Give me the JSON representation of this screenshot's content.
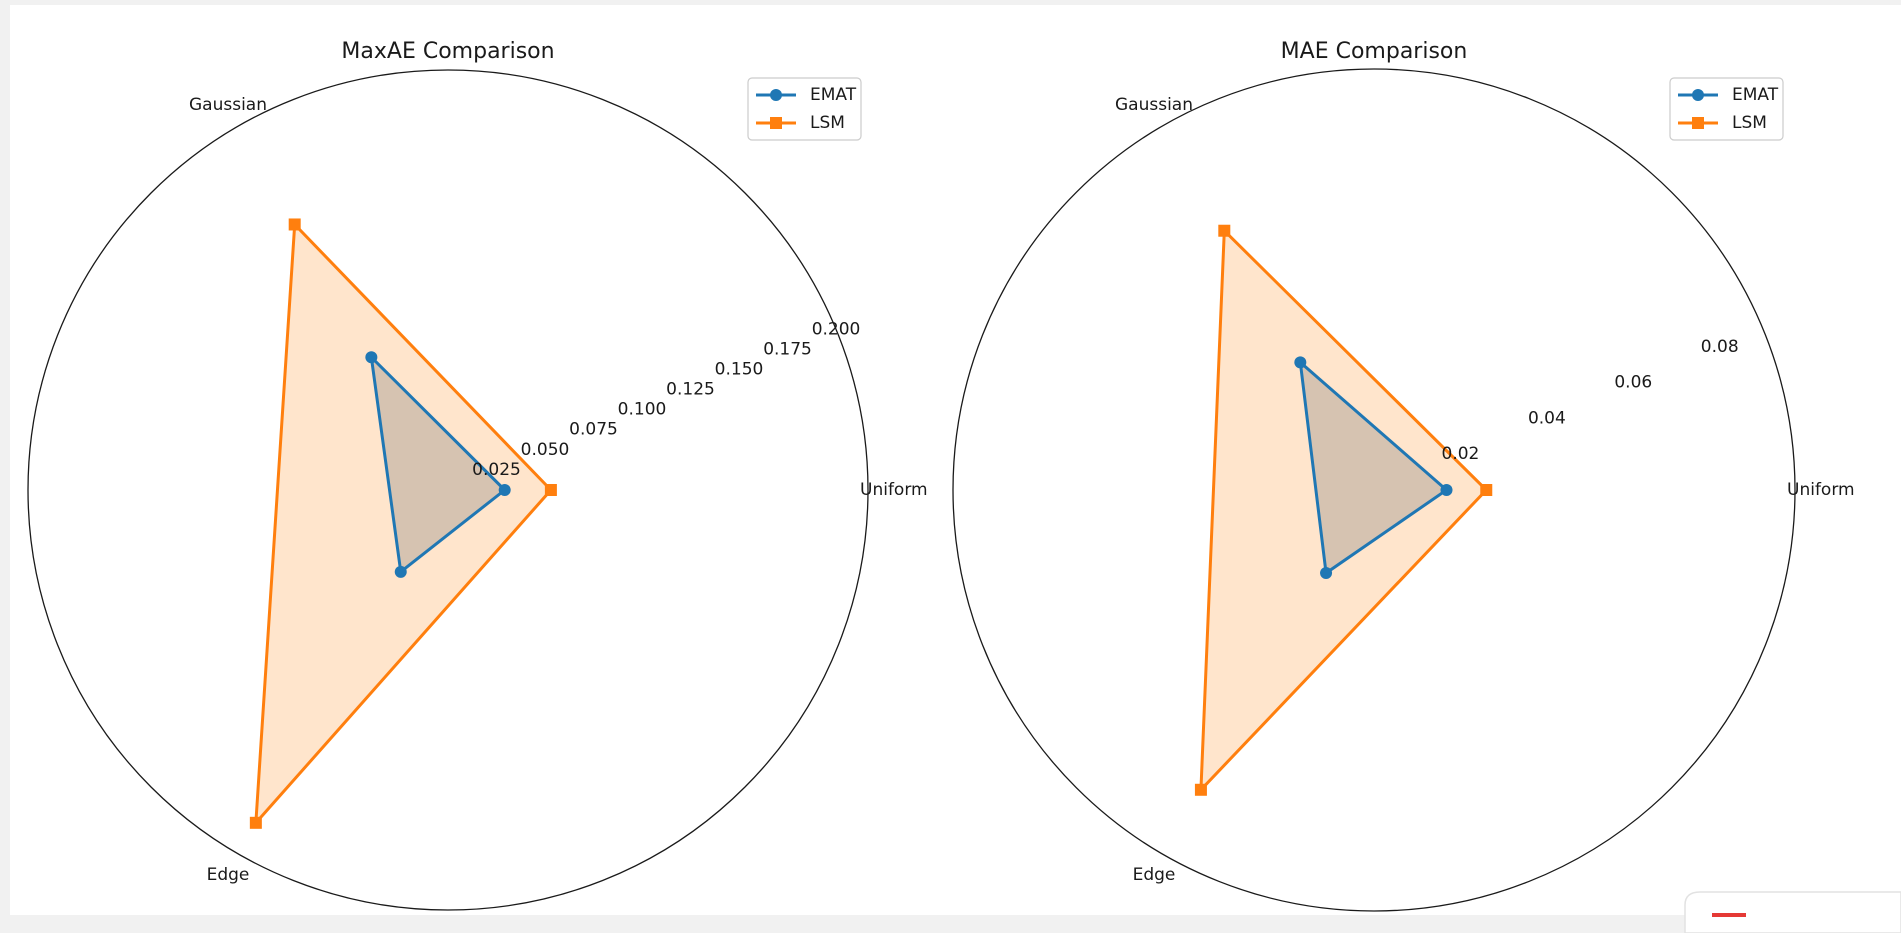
{
  "colors": {
    "emat": "#1f77b4",
    "lsm": "#ff7f0e",
    "lsm_fill": "#ffdcbb",
    "overlap_fill": "#d6c3b1",
    "background": "#ffffff",
    "frame": "#f1f1f1"
  },
  "chart_data": [
    {
      "type": "radar",
      "title": "MaxAE Comparison",
      "categories": [
        "Uniform",
        "Gaussian",
        "Edge"
      ],
      "rlim": [
        0,
        0.2
      ],
      "ticks": [
        "0.025",
        "0.050",
        "0.075",
        "0.100",
        "0.125",
        "0.150",
        "0.175",
        "0.200"
      ],
      "tick_values": [
        0.025,
        0.05,
        0.075,
        0.1,
        0.125,
        0.15,
        0.175,
        0.2
      ],
      "legend": "top-right",
      "grid": false,
      "series": [
        {
          "name": "EMAT",
          "marker": "circle",
          "values": [
            0.027,
            0.073,
            0.045
          ]
        },
        {
          "name": "LSM",
          "marker": "square",
          "values": [
            0.049,
            0.146,
            0.183
          ]
        }
      ]
    },
    {
      "type": "radar",
      "title": "MAE Comparison",
      "categories": [
        "Uniform",
        "Gaussian",
        "Edge"
      ],
      "rlim": [
        0,
        0.09
      ],
      "ticks": [
        "0.02",
        "0.04",
        "0.06",
        "0.08"
      ],
      "tick_values": [
        0.02,
        0.04,
        0.06,
        0.08
      ],
      "legend": "top-right",
      "grid": false,
      "series": [
        {
          "name": "EMAT",
          "marker": "circle",
          "values": [
            0.0155,
            0.0315,
            0.0205
          ]
        },
        {
          "name": "LSM",
          "marker": "square",
          "values": [
            0.024,
            0.064,
            0.074
          ]
        }
      ]
    }
  ]
}
